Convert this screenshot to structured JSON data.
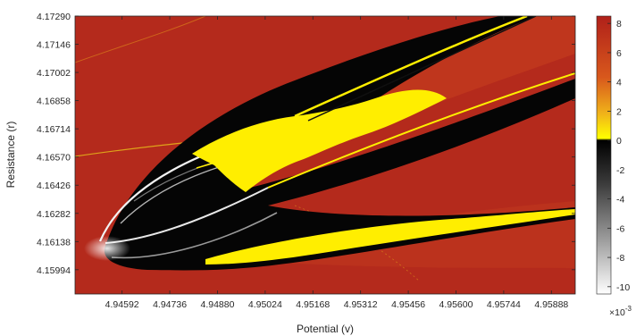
{
  "chart_data": {
    "type": "heatmap",
    "title": "",
    "xlabel": "Potential (v)",
    "ylabel": "Resistance (r)",
    "xlim": [
      4.9445,
      4.9596
    ],
    "ylim": [
      4.1587,
      4.1729
    ],
    "x_ticks": [
      "4.94592",
      "4.94736",
      "4.94880",
      "4.95024",
      "4.95168",
      "4.95312",
      "4.95456",
      "4.95600",
      "4.95744",
      "4.95888"
    ],
    "y_ticks": [
      "4.17290",
      "4.17146",
      "4.17002",
      "4.16858",
      "4.16714",
      "4.16570",
      "4.16426",
      "4.16282",
      "4.16138",
      "4.15994"
    ],
    "colorbar": {
      "range": [
        -10.5,
        8.5
      ],
      "ticks": [
        "8",
        "6",
        "4",
        "2",
        "0",
        "-2",
        "-4",
        "-6",
        "-8",
        "-10"
      ],
      "exponent": "×10",
      "exponent_power": "-3",
      "colors": {
        "positive_high": "#b0201a",
        "positive_mid": "#d85a1e",
        "positive_low": "#ffff00",
        "zero": "#000000",
        "negative_low": "#ffffff"
      }
    },
    "grid": false
  }
}
